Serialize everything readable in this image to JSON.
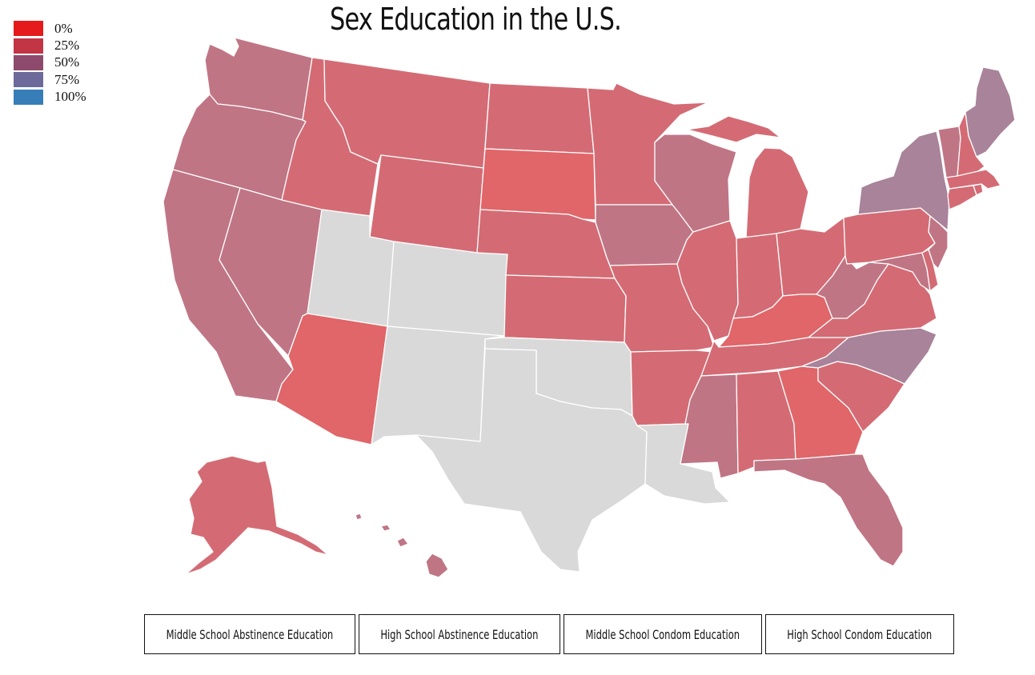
{
  "title": "Sex Education in the U.S.",
  "legend": [
    {
      "label": "0%",
      "color": "#e41a1c"
    },
    {
      "label": "25%",
      "color": "#c23545"
    },
    {
      "label": "50%",
      "color": "#8e4a6c"
    },
    {
      "label": "75%",
      "color": "#6b6a9a"
    },
    {
      "label": "100%",
      "color": "#377eb8"
    }
  ],
  "buttons": [
    {
      "label": "Middle School Abstinence Education"
    },
    {
      "label": "High School Abstinence Education"
    },
    {
      "label": "Middle School Condom Education"
    },
    {
      "label": "High School Condom Education"
    }
  ],
  "colors": {
    "no_data": "#d9d9d9",
    "red": "#e06669",
    "rose": "#d46b74",
    "mauve": "#c07585",
    "lilac": "#a88399"
  },
  "states": [
    {
      "name": "Washington",
      "shade": "mauve"
    },
    {
      "name": "Oregon",
      "shade": "mauve"
    },
    {
      "name": "California",
      "shade": "mauve"
    },
    {
      "name": "Nevada",
      "shade": "mauve"
    },
    {
      "name": "Idaho",
      "shade": "rose"
    },
    {
      "name": "Montana",
      "shade": "rose"
    },
    {
      "name": "Wyoming",
      "shade": "rose"
    },
    {
      "name": "Utah",
      "shade": "no_data"
    },
    {
      "name": "Colorado",
      "shade": "no_data"
    },
    {
      "name": "Arizona",
      "shade": "red"
    },
    {
      "name": "New Mexico",
      "shade": "no_data"
    },
    {
      "name": "North Dakota",
      "shade": "rose"
    },
    {
      "name": "South Dakota",
      "shade": "red"
    },
    {
      "name": "Nebraska",
      "shade": "rose"
    },
    {
      "name": "Kansas",
      "shade": "rose"
    },
    {
      "name": "Oklahoma",
      "shade": "no_data"
    },
    {
      "name": "Texas",
      "shade": "no_data"
    },
    {
      "name": "Minnesota",
      "shade": "rose"
    },
    {
      "name": "Iowa",
      "shade": "mauve"
    },
    {
      "name": "Missouri",
      "shade": "rose"
    },
    {
      "name": "Arkansas",
      "shade": "rose"
    },
    {
      "name": "Louisiana",
      "shade": "no_data"
    },
    {
      "name": "Wisconsin",
      "shade": "mauve"
    },
    {
      "name": "Illinois",
      "shade": "rose"
    },
    {
      "name": "Michigan",
      "shade": "rose"
    },
    {
      "name": "Indiana",
      "shade": "rose"
    },
    {
      "name": "Ohio",
      "shade": "rose"
    },
    {
      "name": "Kentucky",
      "shade": "red"
    },
    {
      "name": "Tennessee",
      "shade": "rose"
    },
    {
      "name": "Mississippi",
      "shade": "mauve"
    },
    {
      "name": "Alabama",
      "shade": "rose"
    },
    {
      "name": "Georgia",
      "shade": "red"
    },
    {
      "name": "Florida",
      "shade": "mauve"
    },
    {
      "name": "South Carolina",
      "shade": "rose"
    },
    {
      "name": "North Carolina",
      "shade": "lilac"
    },
    {
      "name": "Virginia",
      "shade": "rose"
    },
    {
      "name": "West Virginia",
      "shade": "mauve"
    },
    {
      "name": "Pennsylvania",
      "shade": "rose"
    },
    {
      "name": "New York",
      "shade": "lilac"
    },
    {
      "name": "Maryland",
      "shade": "mauve"
    },
    {
      "name": "Delaware",
      "shade": "rose"
    },
    {
      "name": "New Jersey",
      "shade": "mauve"
    },
    {
      "name": "Connecticut",
      "shade": "rose"
    },
    {
      "name": "Rhode Island",
      "shade": "rose"
    },
    {
      "name": "Massachusetts",
      "shade": "rose"
    },
    {
      "name": "Vermont",
      "shade": "mauve"
    },
    {
      "name": "New Hampshire",
      "shade": "rose"
    },
    {
      "name": "Maine",
      "shade": "lilac"
    },
    {
      "name": "Alaska",
      "shade": "rose"
    },
    {
      "name": "Hawaii",
      "shade": "mauve"
    }
  ]
}
